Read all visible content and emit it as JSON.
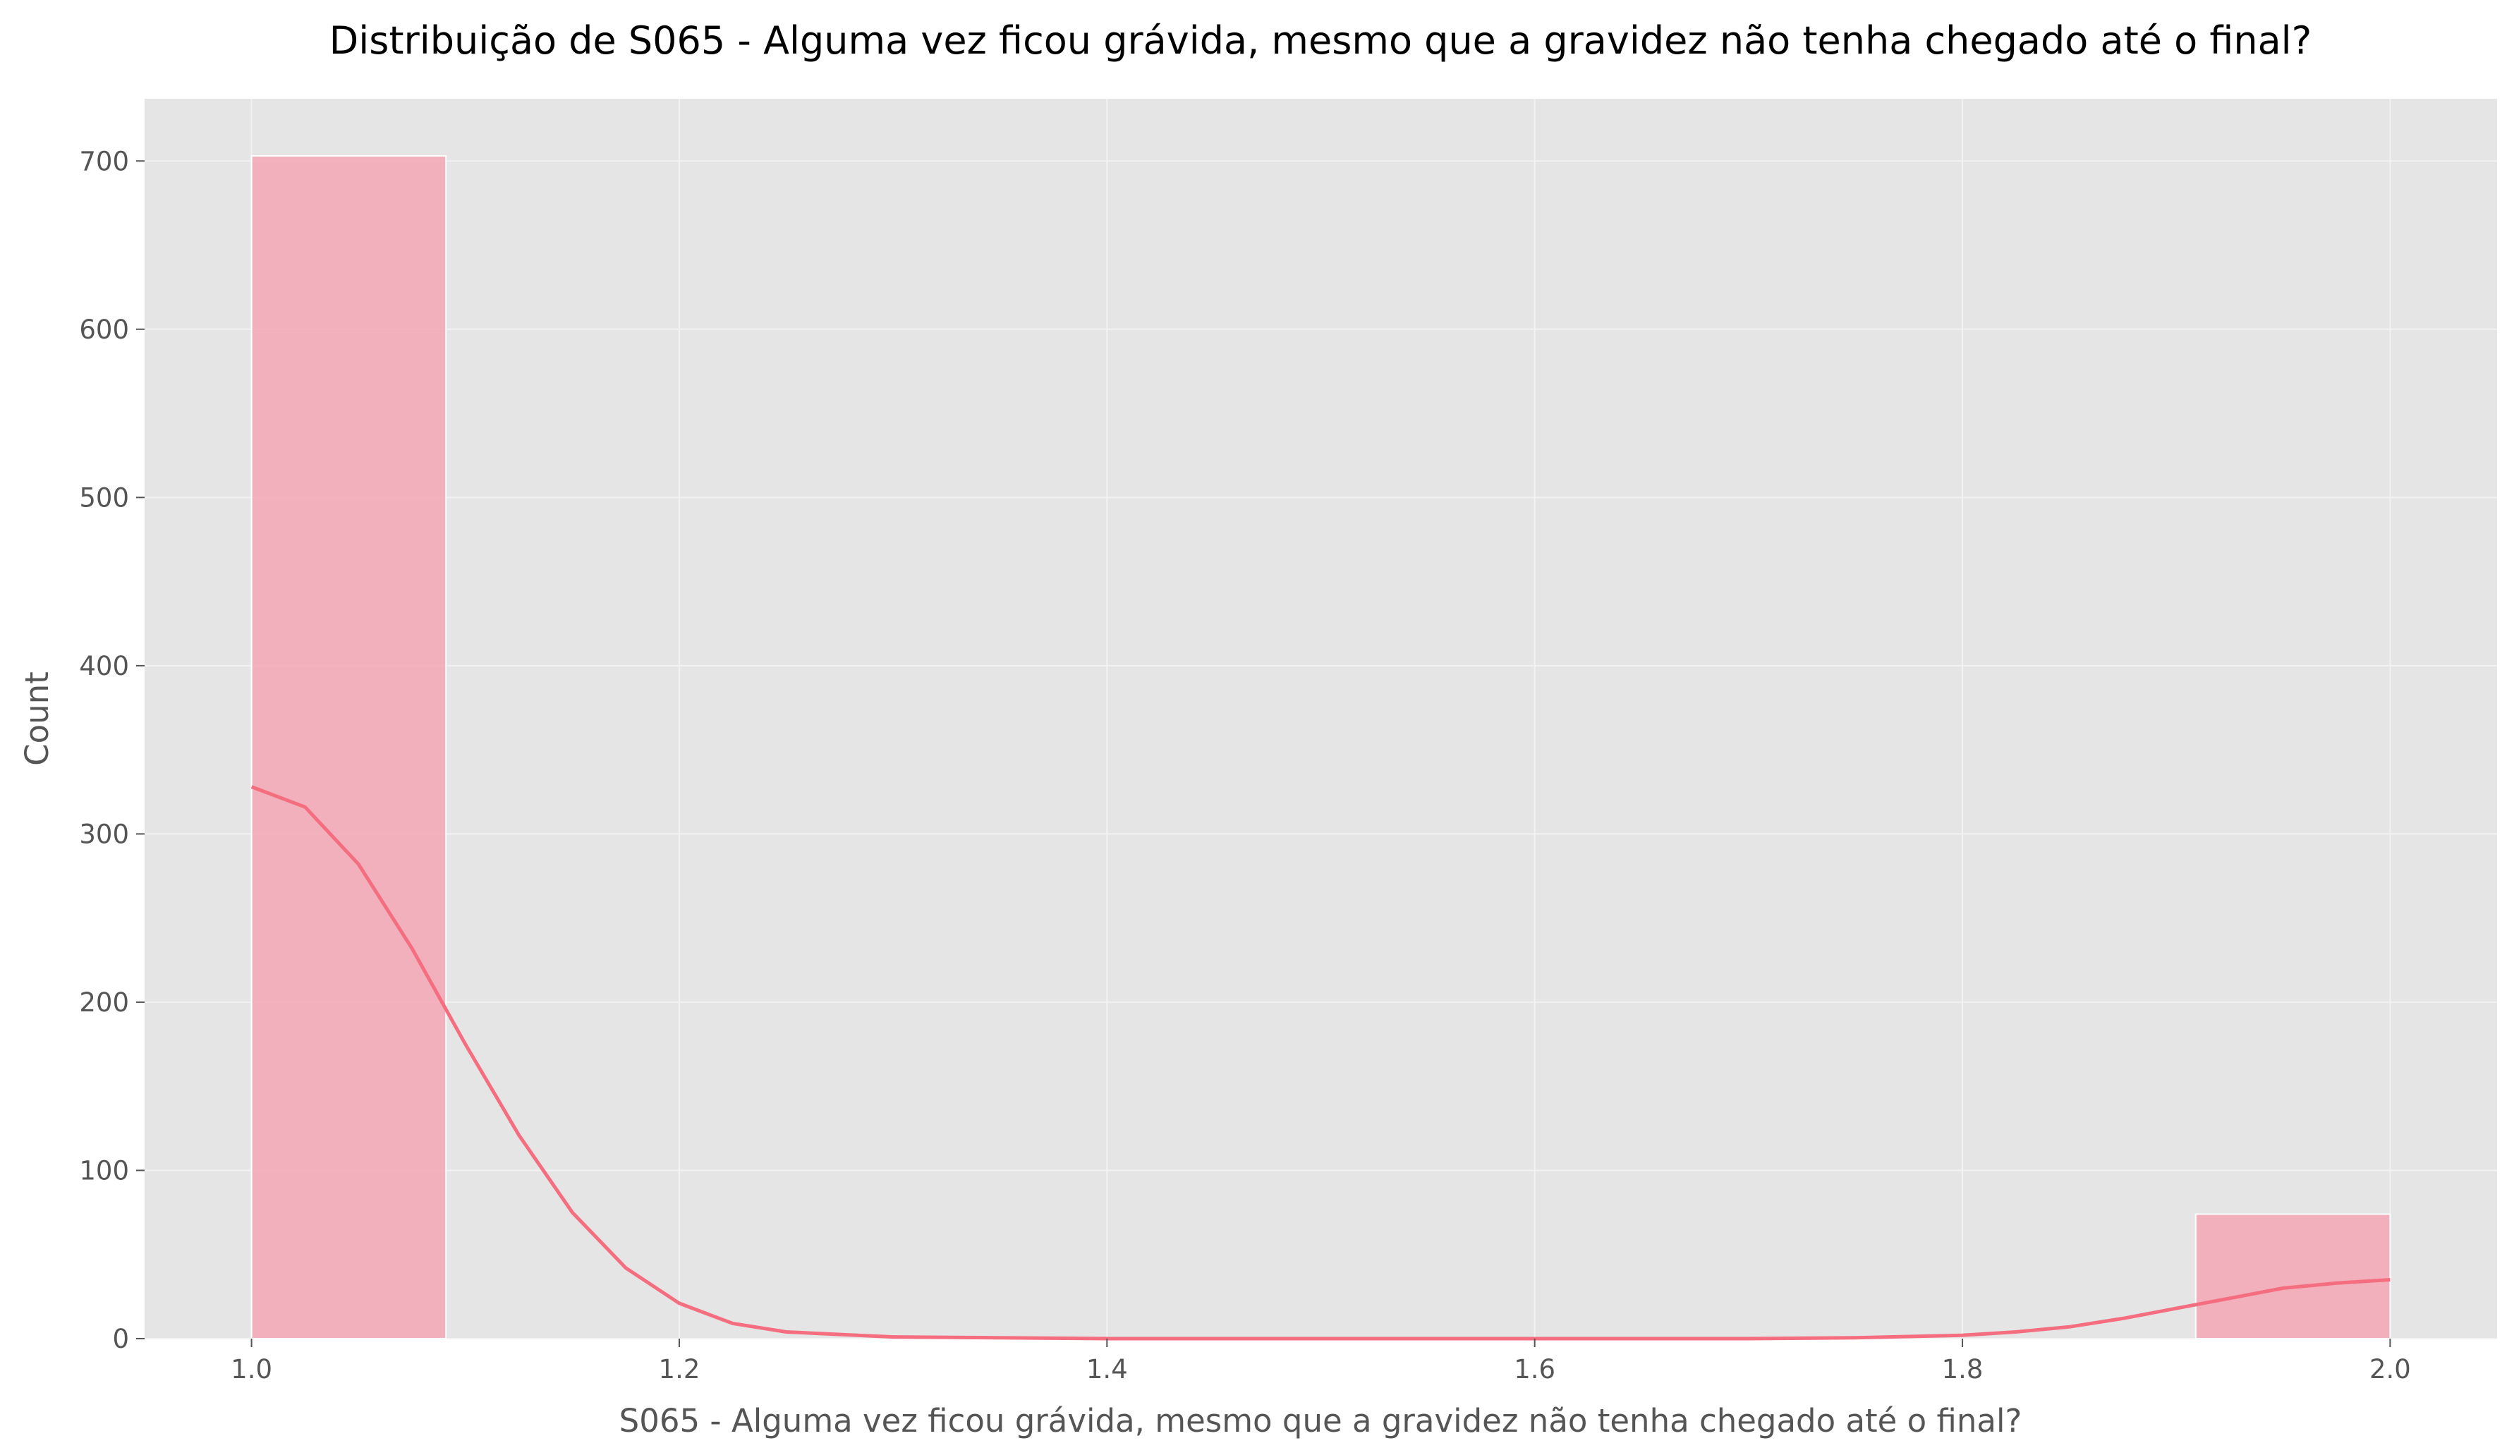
{
  "chart_data": {
    "type": "bar",
    "title": "Distribuição de S065 - Alguma vez ficou grávida, mesmo que a gravidez não tenha chegado até o final?",
    "xlabel": "S065 - Alguma vez ficou grávida, mesmo que a gravidez não tenha chegado até o final?",
    "ylabel": "Count",
    "xlim": [
      0.95,
      2.05
    ],
    "ylim": [
      0,
      737
    ],
    "xticks": [
      1.0,
      1.2,
      1.4,
      1.6,
      1.8,
      2.0
    ],
    "xtick_labels": [
      "1.0",
      "1.2",
      "1.4",
      "1.6",
      "1.8",
      "2.0"
    ],
    "yticks": [
      0,
      100,
      200,
      300,
      400,
      500,
      600,
      700
    ],
    "ytick_labels": [
      "0",
      "100",
      "200",
      "300",
      "400",
      "500",
      "600",
      "700"
    ],
    "grid": true,
    "legend": "none",
    "bars": [
      {
        "x_start": 1.0,
        "x_end": 1.0909,
        "count": 703
      },
      {
        "x_start": 1.9091,
        "x_end": 2.0,
        "count": 74
      }
    ],
    "kde_curve": {
      "x": [
        1.0,
        1.025,
        1.05,
        1.075,
        1.1,
        1.125,
        1.15,
        1.175,
        1.2,
        1.225,
        1.25,
        1.3,
        1.4,
        1.5,
        1.6,
        1.7,
        1.75,
        1.8,
        1.825,
        1.85,
        1.875,
        1.9,
        1.925,
        1.95,
        1.975,
        2.0
      ],
      "y": [
        328,
        316,
        282,
        232,
        175,
        121,
        75,
        42,
        21,
        9,
        4,
        1,
        0,
        0,
        0,
        0,
        0.5,
        2,
        4,
        7,
        12,
        18,
        24,
        30,
        33,
        35
      ]
    },
    "colors": {
      "plot_background": "#e5e5e5",
      "bar_fill": "#f3a7b4",
      "kde_line": "#f46e80",
      "grid": "#f2f2f2"
    }
  }
}
